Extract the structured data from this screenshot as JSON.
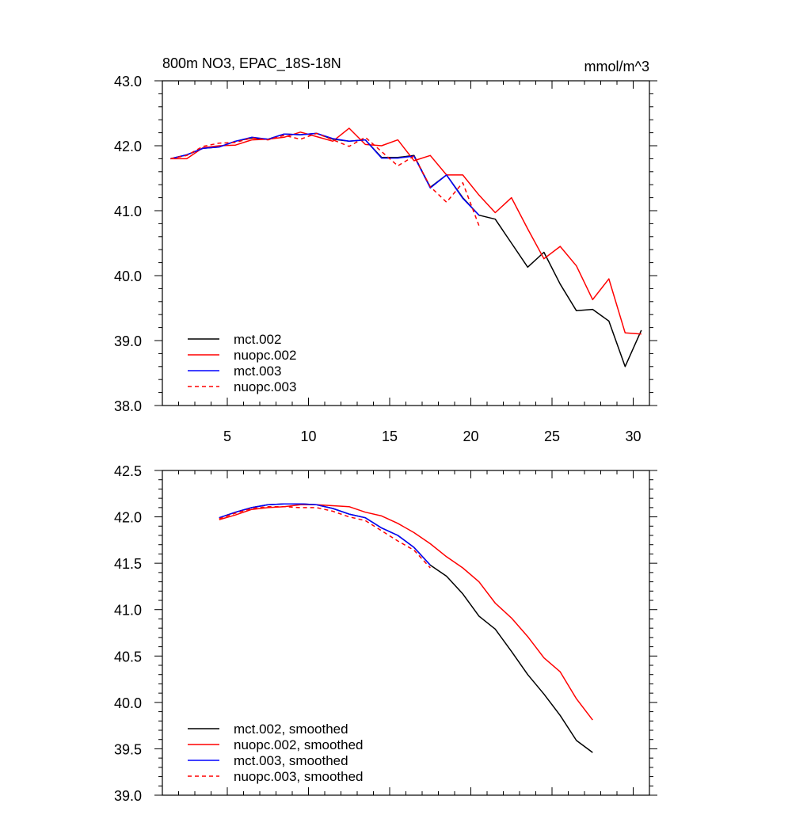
{
  "chart_data": [
    {
      "type": "line",
      "title": "800m NO3, EPAC_18S-18N",
      "units": "mmol/m^3",
      "xlim": [
        1,
        31
      ],
      "ylim": [
        38.0,
        43.0
      ],
      "xticks": [
        5,
        10,
        15,
        20,
        25,
        30
      ],
      "xtick_labels": [
        "5",
        "10",
        "15",
        "20",
        "25",
        "30"
      ],
      "yticks": [
        38.0,
        39.0,
        40.0,
        41.0,
        42.0,
        43.0
      ],
      "ytick_labels": [
        "38.0",
        "39.0",
        "40.0",
        "41.0",
        "42.0",
        "43.0"
      ],
      "legend": "bottom-left",
      "grid": false,
      "series": [
        {
          "name": "mct.002",
          "color": "#000000",
          "dash": false,
          "x": [
            1.5,
            2.5,
            3.5,
            4.5,
            5.5,
            6.5,
            7.5,
            8.5,
            9.5,
            10.5,
            11.5,
            12.5,
            13.5,
            14.5,
            15.5,
            16.5,
            17.5,
            18.5,
            19.5,
            20.5,
            21.5,
            22.5,
            23.5,
            24.5,
            25.5,
            26.5,
            27.5,
            28.5,
            29.5,
            30.5
          ],
          "values": [
            41.8,
            41.86,
            41.96,
            41.98,
            42.07,
            42.12,
            42.1,
            42.18,
            42.17,
            42.19,
            42.1,
            42.07,
            42.09,
            41.82,
            41.82,
            41.85,
            41.36,
            41.55,
            41.2,
            40.93,
            40.87,
            40.5,
            40.13,
            40.36,
            39.87,
            39.46,
            39.48,
            39.3,
            38.6,
            39.16
          ]
        },
        {
          "name": "nuopc.002",
          "color": "#ff0000",
          "dash": false,
          "x": [
            1.5,
            2.5,
            3.5,
            4.5,
            5.5,
            6.5,
            7.5,
            8.5,
            9.5,
            10.5,
            11.5,
            12.5,
            13.5,
            14.5,
            15.5,
            16.5,
            17.5,
            18.5,
            19.5,
            20.5,
            21.5,
            22.5,
            23.5,
            24.5,
            25.5,
            26.5,
            27.5,
            28.5,
            29.5,
            30.5
          ],
          "values": [
            41.8,
            41.8,
            41.97,
            42.0,
            42.01,
            42.09,
            42.1,
            42.13,
            42.21,
            42.14,
            42.07,
            42.27,
            42.02,
            42.0,
            42.09,
            41.77,
            41.85,
            41.55,
            41.55,
            41.24,
            40.97,
            41.2,
            40.72,
            40.26,
            40.45,
            40.15,
            39.63,
            39.95,
            39.12,
            39.1
          ]
        },
        {
          "name": "mct.003",
          "color": "#0000ff",
          "dash": false,
          "x": [
            1.5,
            2.5,
            3.5,
            4.5,
            5.5,
            6.5,
            7.5,
            8.5,
            9.5,
            10.5,
            11.5,
            12.5,
            13.5,
            14.5,
            15.5,
            16.5,
            17.5,
            18.5,
            19.5,
            20.5
          ],
          "values": [
            41.8,
            41.86,
            41.96,
            41.98,
            42.07,
            42.13,
            42.1,
            42.18,
            42.17,
            42.19,
            42.11,
            42.07,
            42.09,
            41.81,
            41.81,
            41.84,
            41.35,
            41.55,
            41.19,
            40.93
          ]
        },
        {
          "name": "nuopc.003",
          "color": "#ff0000",
          "dash": true,
          "x": [
            1.5,
            2.5,
            3.5,
            4.5,
            5.5,
            6.5,
            7.5,
            8.5,
            9.5,
            10.5,
            11.5,
            12.5,
            13.5,
            14.5,
            15.5,
            16.5,
            17.5,
            18.5,
            19.5,
            20.5
          ],
          "values": [
            41.8,
            41.85,
            41.99,
            42.04,
            42.05,
            42.12,
            42.09,
            42.16,
            42.1,
            42.19,
            42.09,
            41.99,
            42.13,
            41.91,
            41.69,
            41.84,
            41.37,
            41.13,
            41.43,
            40.77
          ]
        }
      ]
    },
    {
      "type": "line",
      "xlim": [
        1,
        31
      ],
      "ylim": [
        39.0,
        42.5
      ],
      "xticks": [
        5,
        10,
        15,
        20,
        25,
        30
      ],
      "yticks": [
        39.0,
        39.5,
        40.0,
        40.5,
        41.0,
        41.5,
        42.0,
        42.5
      ],
      "ytick_labels": [
        "39.0",
        "39.5",
        "40.0",
        "40.5",
        "41.0",
        "41.5",
        "42.0",
        "42.5"
      ],
      "legend": "bottom-left",
      "grid": false,
      "series": [
        {
          "name": "mct.002, smoothed",
          "color": "#000000",
          "dash": false,
          "x": [
            4.5,
            5.5,
            6.5,
            7.5,
            8.5,
            9.5,
            10.5,
            11.5,
            12.5,
            13.5,
            14.5,
            15.5,
            16.5,
            17.5,
            18.5,
            19.5,
            20.5,
            21.5,
            22.5,
            23.5,
            24.5,
            25.5,
            26.5,
            27.5
          ],
          "values": [
            41.99,
            42.05,
            42.1,
            42.13,
            42.14,
            42.14,
            42.13,
            42.09,
            42.03,
            41.99,
            41.88,
            41.8,
            41.67,
            41.48,
            41.36,
            41.17,
            40.93,
            40.79,
            40.55,
            40.3,
            40.09,
            39.86,
            39.59,
            39.46
          ]
        },
        {
          "name": "nuopc.002, smoothed",
          "color": "#ff0000",
          "dash": false,
          "x": [
            4.5,
            5.5,
            6.5,
            7.5,
            8.5,
            9.5,
            10.5,
            11.5,
            12.5,
            13.5,
            14.5,
            15.5,
            16.5,
            17.5,
            18.5,
            19.5,
            20.5,
            21.5,
            22.5,
            23.5,
            24.5,
            25.5,
            26.5,
            27.5
          ],
          "values": [
            41.97,
            42.02,
            42.08,
            42.1,
            42.11,
            42.13,
            42.13,
            42.12,
            42.11,
            42.05,
            42.01,
            41.93,
            41.83,
            41.71,
            41.57,
            41.45,
            41.3,
            41.07,
            40.91,
            40.71,
            40.48,
            40.33,
            40.04,
            39.81
          ]
        },
        {
          "name": "mct.003, smoothed",
          "color": "#0000ff",
          "dash": false,
          "x": [
            4.5,
            5.5,
            6.5,
            7.5,
            8.5,
            9.5,
            10.5,
            11.5,
            12.5,
            13.5,
            14.5,
            15.5,
            16.5,
            17.5
          ],
          "values": [
            41.99,
            42.05,
            42.1,
            42.13,
            42.14,
            42.14,
            42.13,
            42.09,
            42.03,
            41.99,
            41.88,
            41.8,
            41.67,
            41.48
          ]
        },
        {
          "name": "nuopc.003, smoothed",
          "color": "#ff0000",
          "dash": true,
          "x": [
            4.5,
            5.5,
            6.5,
            7.5,
            8.5,
            9.5,
            10.5,
            11.5,
            12.5,
            13.5,
            14.5,
            15.5,
            16.5,
            17.5
          ],
          "values": [
            41.98,
            42.04,
            42.09,
            42.11,
            42.11,
            42.1,
            42.1,
            42.06,
            42.0,
            41.96,
            41.85,
            41.74,
            41.64,
            41.45
          ]
        }
      ]
    }
  ]
}
